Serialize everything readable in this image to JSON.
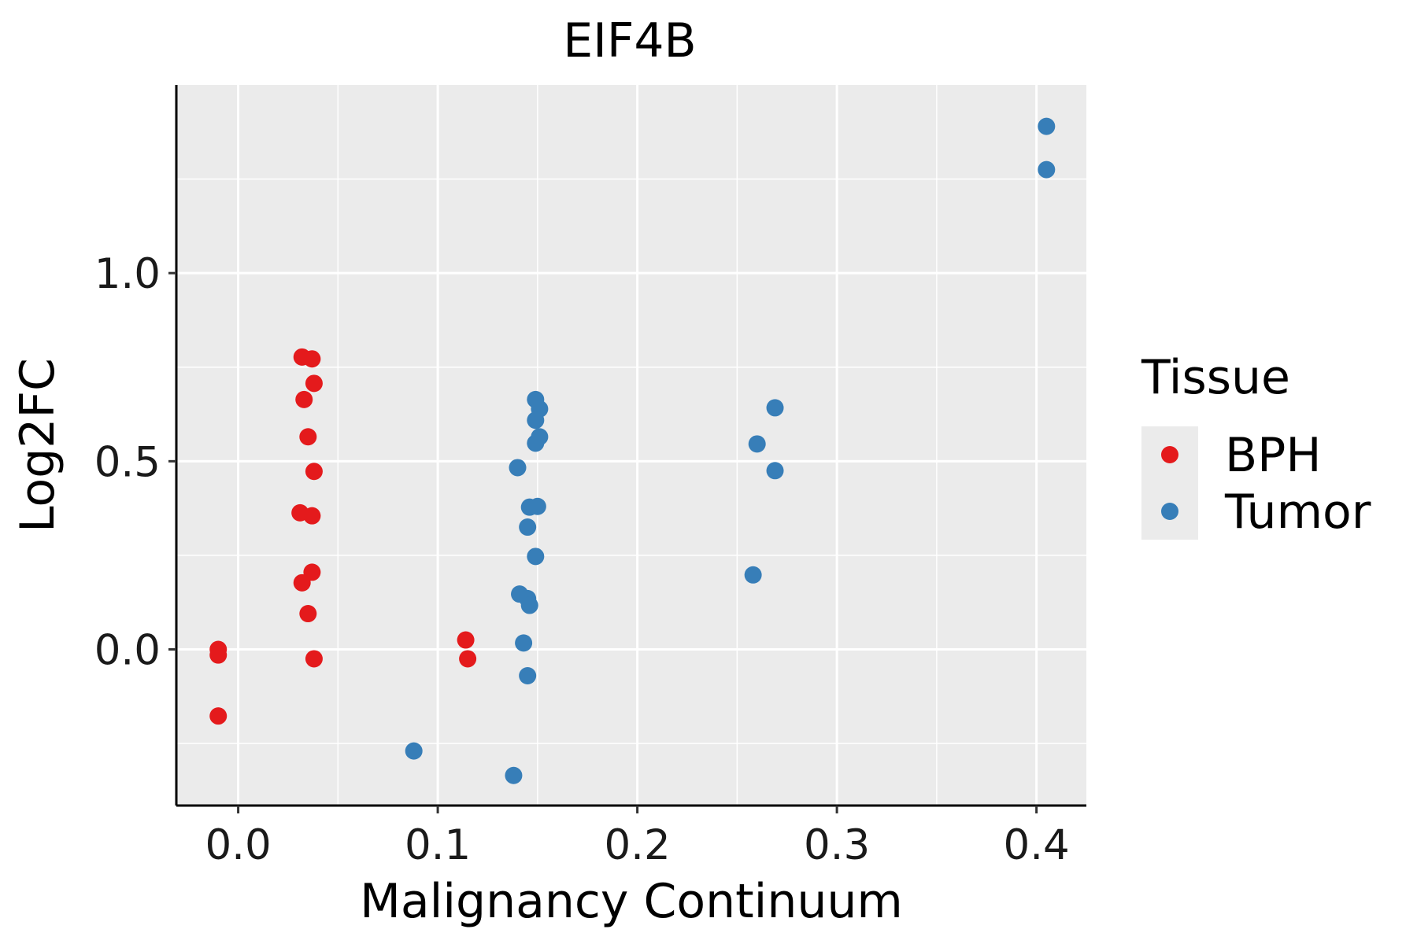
{
  "chart_data": {
    "type": "scatter",
    "title": "EIF4B",
    "xlabel": "Malignancy Continuum",
    "ylabel": "Log2FC",
    "xlim": [
      -0.031,
      0.425
    ],
    "ylim": [
      -0.415,
      1.5
    ],
    "x_ticks": [
      0.0,
      0.1,
      0.2,
      0.3,
      0.4
    ],
    "x_tick_labels": [
      "0.0",
      "0.1",
      "0.2",
      "0.3",
      "0.4"
    ],
    "y_ticks": [
      0.0,
      0.5,
      1.0
    ],
    "y_tick_labels": [
      "0.0",
      "0.5",
      "1.0"
    ],
    "x_minor_ticks": [
      0.05,
      0.15,
      0.25,
      0.35
    ],
    "y_minor_ticks": [
      -0.25,
      0.25,
      0.75,
      1.25
    ],
    "background": "#ebebeb",
    "grid": true,
    "legend": {
      "title": "Tissue",
      "position": "right",
      "entries": [
        {
          "label": "BPH",
          "color": "#e41a1c"
        },
        {
          "label": "Tumor",
          "color": "#377eb8"
        }
      ]
    },
    "series": [
      {
        "name": "BPH",
        "color": "#e41a1c",
        "points": [
          {
            "x": -0.01,
            "y": 0.0
          },
          {
            "x": -0.01,
            "y": -0.015
          },
          {
            "x": -0.01,
            "y": -0.177
          },
          {
            "x": 0.032,
            "y": 0.777
          },
          {
            "x": 0.037,
            "y": 0.772
          },
          {
            "x": 0.038,
            "y": 0.707
          },
          {
            "x": 0.033,
            "y": 0.664
          },
          {
            "x": 0.035,
            "y": 0.565
          },
          {
            "x": 0.038,
            "y": 0.473
          },
          {
            "x": 0.031,
            "y": 0.363
          },
          {
            "x": 0.037,
            "y": 0.355
          },
          {
            "x": 0.037,
            "y": 0.205
          },
          {
            "x": 0.032,
            "y": 0.177
          },
          {
            "x": 0.035,
            "y": 0.095
          },
          {
            "x": 0.038,
            "y": -0.025
          },
          {
            "x": 0.114,
            "y": 0.025
          },
          {
            "x": 0.115,
            "y": -0.025
          }
        ]
      },
      {
        "name": "Tumor",
        "color": "#377eb8",
        "points": [
          {
            "x": 0.088,
            "y": -0.27
          },
          {
            "x": 0.138,
            "y": -0.335
          },
          {
            "x": 0.149,
            "y": 0.664
          },
          {
            "x": 0.151,
            "y": 0.639
          },
          {
            "x": 0.149,
            "y": 0.609
          },
          {
            "x": 0.151,
            "y": 0.565
          },
          {
            "x": 0.149,
            "y": 0.548
          },
          {
            "x": 0.14,
            "y": 0.483
          },
          {
            "x": 0.146,
            "y": 0.378
          },
          {
            "x": 0.15,
            "y": 0.38
          },
          {
            "x": 0.145,
            "y": 0.325
          },
          {
            "x": 0.149,
            "y": 0.247
          },
          {
            "x": 0.141,
            "y": 0.147
          },
          {
            "x": 0.145,
            "y": 0.135
          },
          {
            "x": 0.146,
            "y": 0.117
          },
          {
            "x": 0.143,
            "y": 0.017
          },
          {
            "x": 0.145,
            "y": -0.07
          },
          {
            "x": 0.269,
            "y": 0.642
          },
          {
            "x": 0.26,
            "y": 0.546
          },
          {
            "x": 0.269,
            "y": 0.475
          },
          {
            "x": 0.258,
            "y": 0.198
          },
          {
            "x": 0.405,
            "y": 1.39
          },
          {
            "x": 0.405,
            "y": 1.275
          }
        ]
      }
    ]
  }
}
